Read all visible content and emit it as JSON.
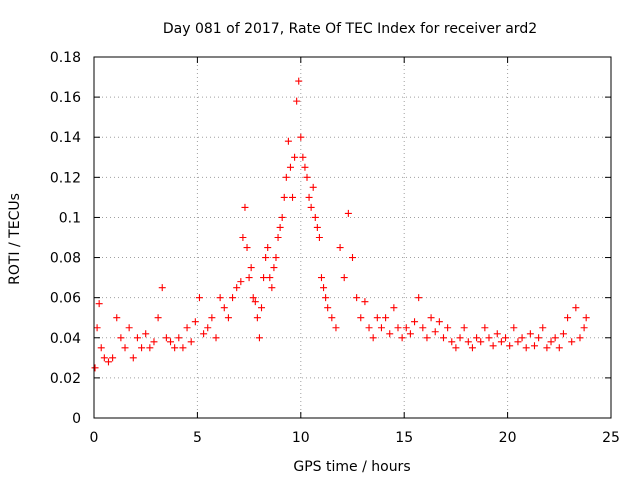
{
  "chart_data": {
    "type": "scatter",
    "title": "Day 081 of 2017, Rate Of TEC Index for receiver ard2",
    "xlabel": "GPS time / hours",
    "ylabel": "ROTI / TECUs",
    "xlim": [
      0,
      25
    ],
    "ylim": [
      0,
      0.18
    ],
    "xticks": [
      "0",
      "5",
      "10",
      "15",
      "20",
      "25"
    ],
    "yticks": [
      "0",
      "0.02",
      "0.04",
      "0.06",
      "0.08",
      "0.1",
      "0.12",
      "0.14",
      "0.16",
      "0.18"
    ],
    "grid": true,
    "marker": "+",
    "color": "#ff0000",
    "series": [
      {
        "x": [
          0.05,
          0.15,
          0.25,
          0.35,
          0.5,
          0.7,
          0.9,
          1.1,
          1.3,
          1.5,
          1.7,
          1.9,
          2.1,
          2.3,
          2.5,
          2.7,
          2.9,
          3.1,
          3.3,
          3.5,
          3.7,
          3.9,
          4.1,
          4.3,
          4.5,
          4.7,
          4.9,
          5.1,
          5.3,
          5.5,
          5.7,
          5.9,
          6.1,
          6.3,
          6.5,
          6.7,
          6.9,
          7.1,
          7.2,
          7.3,
          7.4,
          7.5,
          7.6,
          7.7,
          7.8,
          7.9,
          8.0,
          8.1,
          8.2,
          8.3,
          8.4,
          8.5,
          8.6,
          8.7,
          8.8,
          8.9,
          9.0,
          9.1,
          9.2,
          9.3,
          9.4,
          9.5,
          9.6,
          9.7,
          9.8,
          9.9,
          10.0,
          10.1,
          10.2,
          10.3,
          10.4,
          10.5,
          10.6,
          10.7,
          10.8,
          10.9,
          11.0,
          11.1,
          11.2,
          11.3,
          11.5,
          11.7,
          11.9,
          12.1,
          12.3,
          12.5,
          12.7,
          12.9,
          13.1,
          13.3,
          13.5,
          13.7,
          13.9,
          14.1,
          14.3,
          14.5,
          14.7,
          14.9,
          15.1,
          15.3,
          15.5,
          15.7,
          15.9,
          16.1,
          16.3,
          16.5,
          16.7,
          16.9,
          17.1,
          17.3,
          17.5,
          17.7,
          17.9,
          18.1,
          18.3,
          18.5,
          18.7,
          18.9,
          19.1,
          19.3,
          19.5,
          19.7,
          19.9,
          20.1,
          20.3,
          20.5,
          20.7,
          20.9,
          21.1,
          21.3,
          21.5,
          21.7,
          21.9,
          22.1,
          22.3,
          22.5,
          22.7,
          22.9,
          23.1,
          23.3,
          23.5,
          23.7,
          23.8
        ],
        "y": [
          0.025,
          0.045,
          0.057,
          0.035,
          0.03,
          0.028,
          0.03,
          0.05,
          0.04,
          0.035,
          0.045,
          0.03,
          0.04,
          0.035,
          0.042,
          0.035,
          0.038,
          0.05,
          0.065,
          0.04,
          0.038,
          0.035,
          0.04,
          0.035,
          0.045,
          0.038,
          0.048,
          0.06,
          0.042,
          0.045,
          0.05,
          0.04,
          0.06,
          0.055,
          0.05,
          0.06,
          0.065,
          0.068,
          0.09,
          0.105,
          0.085,
          0.07,
          0.075,
          0.06,
          0.058,
          0.05,
          0.04,
          0.055,
          0.07,
          0.08,
          0.085,
          0.07,
          0.065,
          0.075,
          0.08,
          0.09,
          0.095,
          0.1,
          0.11,
          0.12,
          0.138,
          0.125,
          0.11,
          0.13,
          0.158,
          0.168,
          0.14,
          0.13,
          0.125,
          0.12,
          0.11,
          0.105,
          0.115,
          0.1,
          0.095,
          0.09,
          0.07,
          0.065,
          0.06,
          0.055,
          0.05,
          0.045,
          0.085,
          0.07,
          0.102,
          0.08,
          0.06,
          0.05,
          0.058,
          0.045,
          0.04,
          0.05,
          0.045,
          0.05,
          0.042,
          0.055,
          0.045,
          0.04,
          0.045,
          0.042,
          0.048,
          0.06,
          0.045,
          0.04,
          0.05,
          0.043,
          0.048,
          0.04,
          0.045,
          0.038,
          0.035,
          0.04,
          0.045,
          0.038,
          0.035,
          0.04,
          0.038,
          0.045,
          0.04,
          0.036,
          0.042,
          0.038,
          0.04,
          0.036,
          0.045,
          0.038,
          0.04,
          0.035,
          0.042,
          0.036,
          0.04,
          0.045,
          0.035,
          0.038,
          0.04,
          0.035,
          0.042,
          0.05,
          0.038,
          0.055,
          0.04,
          0.045,
          0.05
        ]
      }
    ]
  }
}
